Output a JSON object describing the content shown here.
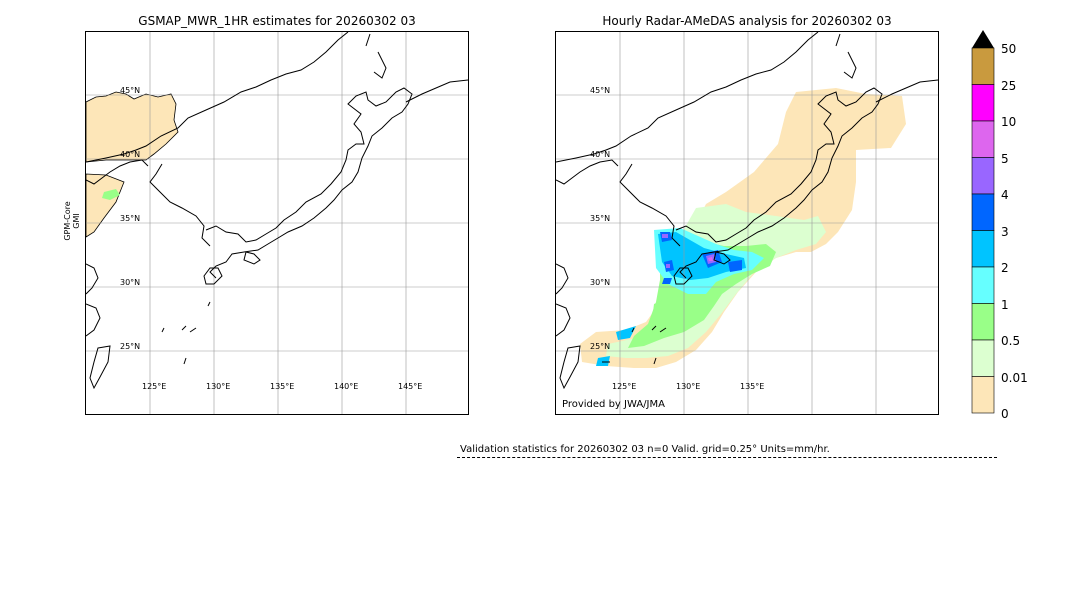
{
  "left_panel": {
    "title": "GSMAP_MWR_1HR estimates for 20260302 03",
    "side_label_1": "GPM-Core",
    "side_label_2": "GMI",
    "lat_labels": [
      "45°N",
      "40°N",
      "35°N",
      "30°N",
      "25°N"
    ],
    "lon_labels": [
      "125°E",
      "130°E",
      "135°E",
      "140°E",
      "145°E"
    ]
  },
  "right_panel": {
    "title": "Hourly Radar-AMeDAS analysis for 20260302 03",
    "lat_labels": [
      "45°N",
      "40°N",
      "35°N",
      "30°N",
      "25°N"
    ],
    "lon_labels": [
      "125°E",
      "130°E",
      "135°E"
    ],
    "credit": "Provided by JWA/JMA"
  },
  "colorbar": {
    "labels": [
      "50",
      "25",
      "10",
      "5",
      "4",
      "3",
      "2",
      "1",
      "0.5",
      "0.01",
      "0"
    ],
    "colors": [
      "#c99a3e",
      "#ff00ff",
      "#dd66ee",
      "#9966ff",
      "#0066ff",
      "#00c4ff",
      "#66ffff",
      "#99ff88",
      "#dcffd0",
      "#fde6b8"
    ],
    "extend_color": "#000000"
  },
  "validation": {
    "text": "Validation statistics for 20260302 03  n=0 Valid. grid=0.25° Units=mm/hr."
  }
}
